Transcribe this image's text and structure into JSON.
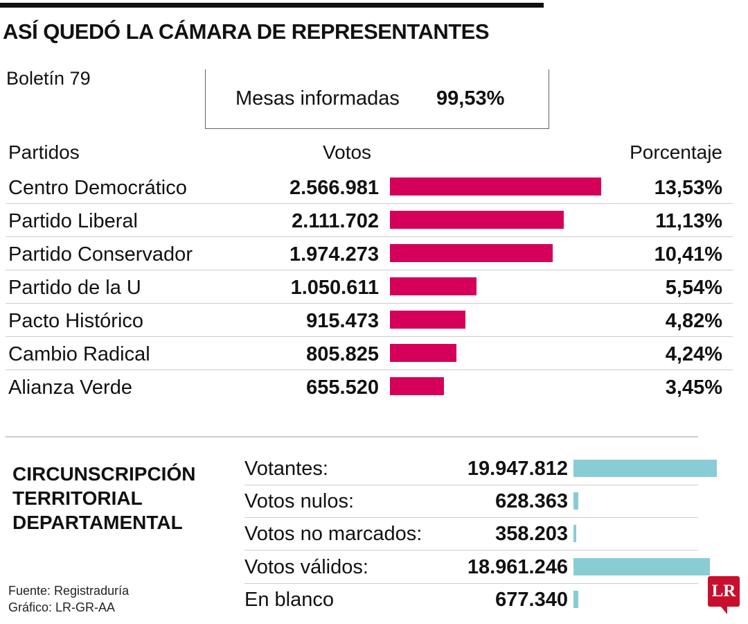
{
  "header": {
    "title": "ASÍ QUEDÓ LA CÁMARA DE REPRESENTANTES",
    "bulletin": "Boletín 79",
    "mesas_label": "Mesas informadas",
    "mesas_value": "99,53%"
  },
  "chart_data": [
    {
      "type": "bar",
      "orientation": "horizontal",
      "columns": {
        "party": "Partidos",
        "votes": "Votos",
        "percent": "Porcentaje"
      },
      "categories": [
        "Centro Democrático",
        "Partido Liberal",
        "Partido Conservador",
        "Partido de la U",
        "Pacto Histórico",
        "Cambio Radical",
        "Alianza Verde"
      ],
      "values": [
        2566981,
        2111702,
        1974273,
        1050611,
        915473,
        805825,
        655520
      ],
      "value_labels": [
        "2.566.981",
        "2.111.702",
        "1.974.273",
        "1.050.611",
        "915.473",
        "805.825",
        "655.520"
      ],
      "percent_labels": [
        "13,53%",
        "11,13%",
        "10,41%",
        "5,54%",
        "4,82%",
        "4,24%",
        "3,45%"
      ],
      "color": "#d4005a"
    },
    {
      "type": "bar",
      "orientation": "horizontal",
      "title": "CIRCUNSCRIPCIÓN TERRITORIAL DEPARTAMENTAL",
      "title_lines": [
        "CIRCUNSCRIPCIÓN",
        "TERRITORIAL",
        "DEPARTAMENTAL"
      ],
      "categories": [
        "Votantes:",
        "Votos nulos:",
        "Votos no marcados:",
        "Votos válidos:",
        "En blanco"
      ],
      "values": [
        19947812,
        628363,
        358203,
        18961246,
        677340
      ],
      "value_labels": [
        "19.947.812",
        "628.363",
        "358.203",
        "18.961.246",
        "677.340"
      ],
      "color": "#88cdd3"
    }
  ],
  "footer": {
    "source": "Fuente: Registraduría",
    "credit": "Gráfico: LR-GR-AA",
    "logo": "LR"
  }
}
